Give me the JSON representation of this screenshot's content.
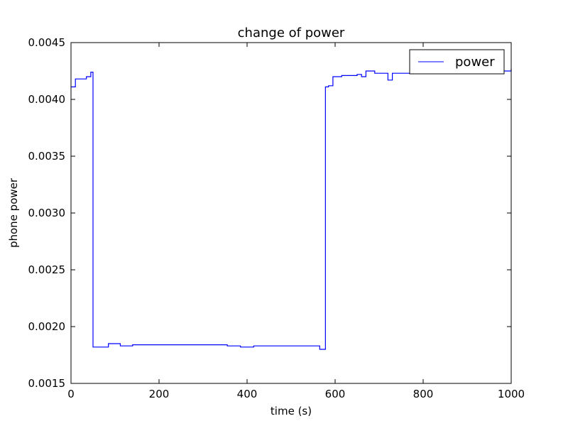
{
  "chart_data": {
    "type": "line",
    "title": "change of power",
    "xlabel": "time (s)",
    "ylabel": "phone power",
    "xlim": [
      0,
      1000
    ],
    "ylim": [
      0.0015,
      0.0045
    ],
    "xticks": [
      0,
      200,
      400,
      600,
      800,
      1000
    ],
    "xtick_labels": [
      "0",
      "200",
      "400",
      "600",
      "800",
      "1000"
    ],
    "yticks": [
      0.0015,
      0.002,
      0.0025,
      0.003,
      0.0035,
      0.004,
      0.0045
    ],
    "ytick_labels": [
      "0.0015",
      "0.0020",
      "0.0025",
      "0.0030",
      "0.0035",
      "0.0040",
      "0.0045"
    ],
    "grid": false,
    "legend": {
      "location": "top-right"
    },
    "series": [
      {
        "name": "power",
        "color": "#0000ff",
        "step": "post",
        "x": [
          0,
          10,
          25,
          35,
          45,
          50,
          85,
          112,
          140,
          180,
          230,
          290,
          320,
          355,
          385,
          415,
          480,
          535,
          565,
          578,
          585,
          595,
          615,
          650,
          660,
          670,
          690,
          720,
          730,
          760,
          790,
          820,
          1000
        ],
        "y": [
          0.00411,
          0.00418,
          0.00418,
          0.0042,
          0.00424,
          0.00182,
          0.00185,
          0.00183,
          0.00184,
          0.00184,
          0.00184,
          0.00184,
          0.00184,
          0.00183,
          0.00182,
          0.00183,
          0.00183,
          0.00183,
          0.0018,
          0.00411,
          0.00412,
          0.0042,
          0.00421,
          0.00422,
          0.0042,
          0.00425,
          0.00423,
          0.00417,
          0.00423,
          0.00423,
          0.00425,
          0.00425,
          0.00427
        ]
      }
    ]
  }
}
